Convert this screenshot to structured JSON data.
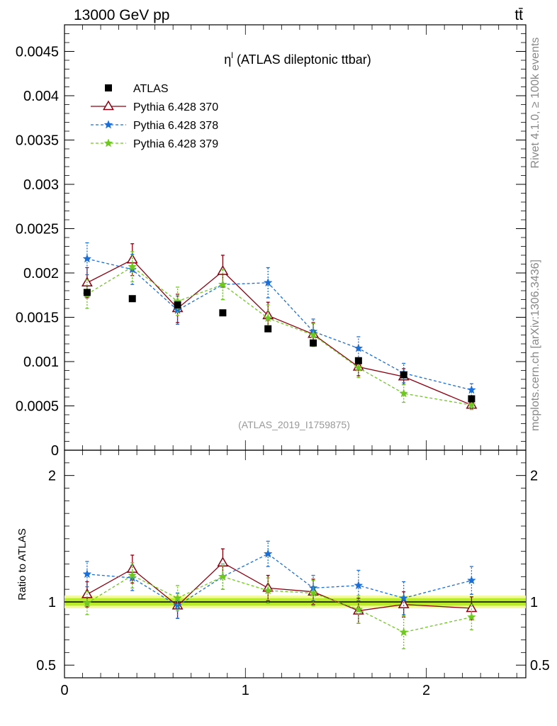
{
  "header": {
    "left": "13000 GeV pp",
    "right": "tt̄"
  },
  "side_labels": {
    "rivet": "Rivet 4.1.0, ≥ 100k events",
    "mcplots": "mcplots.cern.ch [arXiv:1306.3436]"
  },
  "chart_data": {
    "type": "scatter",
    "title": "η",
    "title_superscript": "l",
    "title_suffix": " (ATLAS dileptonic ttbar)",
    "analysis_id": "(ATLAS_2019_I1759875)",
    "xlabel": "",
    "ylabel": "",
    "xlim": [
      0,
      2.55
    ],
    "ylim": [
      0,
      0.0048
    ],
    "x_ticks": [
      0,
      1,
      2
    ],
    "y_ticks": [
      0,
      0.0005,
      0.001,
      0.0015,
      0.002,
      0.0025,
      0.003,
      0.0035,
      0.004,
      0.0045
    ],
    "y_tick_labels": [
      "0",
      "0.0005",
      "0.001",
      "0.0015",
      "0.002",
      "0.0025",
      "0.003",
      "0.0035",
      "0.004",
      "0.0045"
    ],
    "x": [
      0.125,
      0.375,
      0.625,
      0.875,
      1.125,
      1.375,
      1.625,
      1.875,
      2.25
    ],
    "data": {
      "name": "ATLAS",
      "color": "#000000",
      "values": [
        0.00178,
        0.00171,
        0.00164,
        0.00155,
        0.00137,
        0.00121,
        0.00101,
        0.00085,
        0.00058
      ],
      "xerr": [
        0.125,
        0.125,
        0.125,
        0.125,
        0.125,
        0.125,
        0.125,
        0.125,
        0.25
      ]
    },
    "series": [
      {
        "name": "Pythia 6.428 370",
        "color": "#8b0011",
        "marker": "triangle",
        "dash": "",
        "values": [
          0.00189,
          0.00215,
          0.0016,
          0.00202,
          0.00152,
          0.00131,
          0.00094,
          0.00083,
          0.00051
        ],
        "errors": [
          0.00017,
          0.00018,
          0.00016,
          0.00018,
          0.00015,
          0.00013,
          0.0001,
          9e-05,
          5e-05
        ]
      },
      {
        "name": "Pythia 6.428 378",
        "color": "#1a6ed8",
        "marker": "star",
        "dash": "4,3",
        "values": [
          0.00216,
          0.00204,
          0.00158,
          0.00187,
          0.00189,
          0.00134,
          0.00115,
          0.00087,
          0.00068
        ],
        "errors": [
          0.00018,
          0.00017,
          0.00016,
          0.00017,
          0.00017,
          0.00014,
          0.00013,
          0.00011,
          7e-05
        ]
      },
      {
        "name": "Pythia 6.428 379",
        "color": "#6ec81e",
        "marker": "star",
        "dash": "4,3",
        "values": [
          0.00176,
          0.00207,
          0.00168,
          0.00187,
          0.00149,
          0.0013,
          0.00093,
          0.00064,
          0.00051
        ],
        "errors": [
          0.00016,
          0.00017,
          0.00016,
          0.00017,
          0.00015,
          0.00013,
          0.00011,
          0.0001,
          5e-05
        ]
      }
    ],
    "ratio": {
      "ylabel": "Ratio to ATLAS",
      "ylim": [
        0.4,
        2.2
      ],
      "y_ticks": [
        0.5,
        1,
        2
      ],
      "y_tick_labels": [
        "0.5",
        "1",
        "2"
      ],
      "band_inner": [
        0.97,
        1.03
      ],
      "band_outer": [
        0.95,
        1.05
      ],
      "band_inner_color": "#b8ec28",
      "band_outer_color": "#f4fa9a",
      "series_values": [
        [
          1.06,
          1.26,
          0.97,
          1.31,
          1.11,
          1.08,
          0.93,
          0.98,
          0.95
        ],
        [
          1.22,
          1.19,
          0.97,
          1.2,
          1.38,
          1.11,
          1.13,
          1.03,
          1.17
        ],
        [
          0.99,
          1.21,
          1.03,
          1.2,
          1.09,
          1.07,
          0.94,
          0.76,
          0.88
        ]
      ],
      "series_errors": [
        [
          0.1,
          0.11,
          0.1,
          0.11,
          0.1,
          0.1,
          0.1,
          0.1,
          0.09
        ],
        [
          0.1,
          0.1,
          0.1,
          0.1,
          0.1,
          0.1,
          0.12,
          0.13,
          0.11
        ],
        [
          0.09,
          0.1,
          0.1,
          0.1,
          0.1,
          0.1,
          0.11,
          0.13,
          0.1
        ]
      ]
    }
  }
}
